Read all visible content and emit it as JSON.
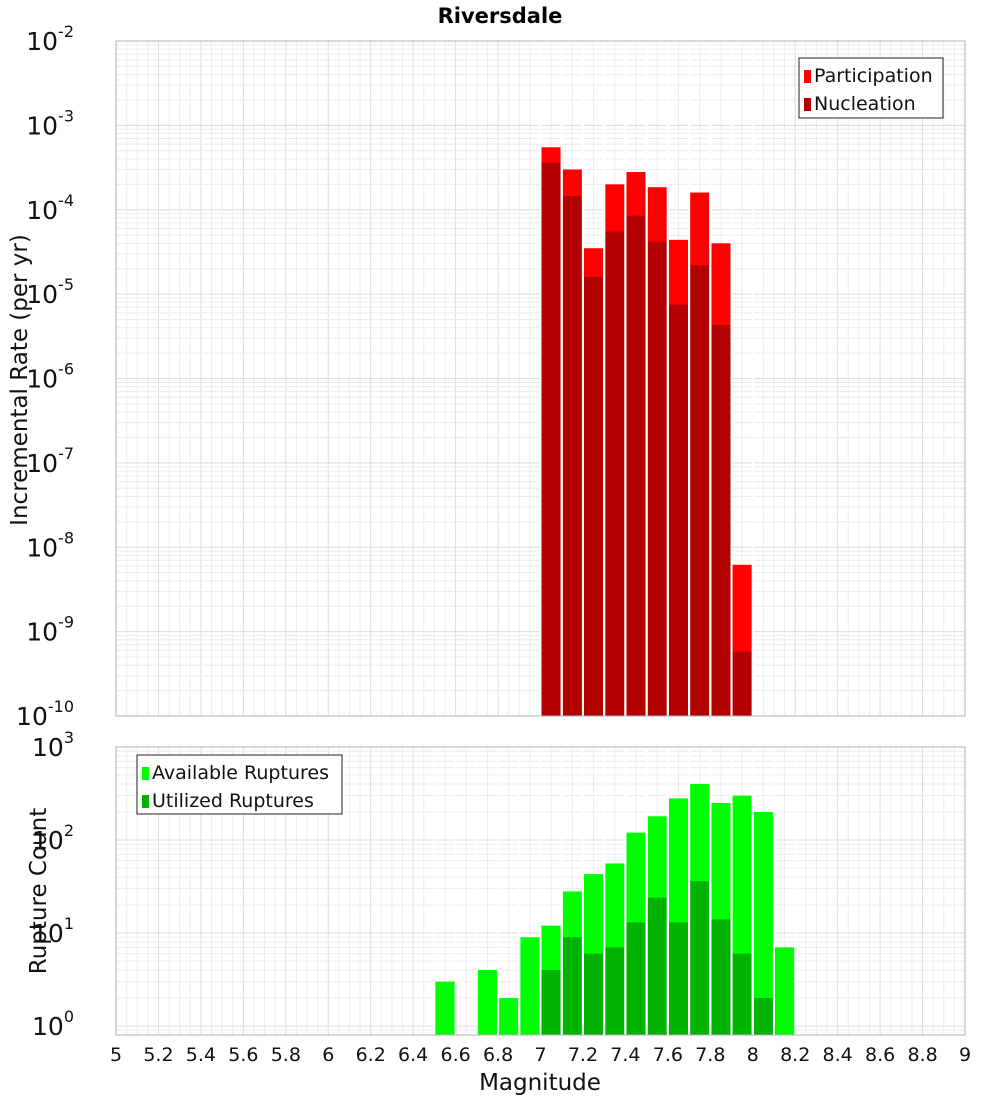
{
  "chart_data": [
    {
      "type": "bar",
      "title": "Riversdale",
      "xlabel": "",
      "ylabel": "Incremental Rate (per yr)",
      "yscale": "log",
      "ylim": [
        1e-10,
        0.01
      ],
      "xlim": [
        5,
        9
      ],
      "bin_width": 0.1,
      "grid": true,
      "legend_position": "top-right",
      "series": [
        {
          "name": "Participation",
          "color": "#ff0000",
          "x": [
            7.05,
            7.15,
            7.25,
            7.35,
            7.45,
            7.55,
            7.65,
            7.75,
            7.85,
            7.95
          ],
          "values": [
            0.00055,
            0.0003,
            3.5e-05,
            0.0002,
            0.00028,
            0.000185,
            4.4e-05,
            0.00016,
            4e-05,
            6.2e-09
          ]
        },
        {
          "name": "Nucleation",
          "color": "#b30000",
          "x": [
            7.05,
            7.15,
            7.25,
            7.35,
            7.45,
            7.55,
            7.65,
            7.75,
            7.85,
            7.95
          ],
          "values": [
            0.00036,
            0.000145,
            1.6e-05,
            5.5e-05,
            8.5e-05,
            4.2e-05,
            7.5e-06,
            2.2e-05,
            4.3e-06,
            5.8e-10
          ]
        }
      ]
    },
    {
      "type": "bar",
      "title": "",
      "xlabel": "Magnitude",
      "ylabel": "Rupture Count",
      "yscale": "log",
      "ylim": [
        0.8,
        1000
      ],
      "xlim": [
        5,
        9
      ],
      "bin_width": 0.1,
      "grid": true,
      "legend_position": "top-left",
      "x_ticks": [
        "5",
        "5.2",
        "5.4",
        "5.6",
        "5.8",
        "6",
        "6.2",
        "6.4",
        "6.6",
        "6.8",
        "7",
        "7.2",
        "7.4",
        "7.6",
        "7.8",
        "8",
        "8.2",
        "8.4",
        "8.6",
        "8.8",
        "9"
      ],
      "series": [
        {
          "name": "Available Ruptures",
          "color": "#00ff00",
          "x": [
            6.55,
            6.75,
            6.85,
            6.95,
            7.05,
            7.15,
            7.25,
            7.35,
            7.45,
            7.55,
            7.65,
            7.75,
            7.85,
            7.95,
            8.05,
            8.15
          ],
          "values": [
            3,
            4,
            2,
            9,
            12,
            28,
            43,
            56,
            120,
            180,
            280,
            400,
            250,
            300,
            200,
            7
          ]
        },
        {
          "name": "Utilized Ruptures",
          "color": "#00b300",
          "x": [
            7.05,
            7.15,
            7.25,
            7.35,
            7.45,
            7.55,
            7.65,
            7.75,
            7.85,
            7.95,
            8.05
          ],
          "values": [
            4,
            9,
            6,
            7,
            13,
            24,
            13,
            36,
            14,
            6,
            2
          ]
        }
      ]
    }
  ]
}
